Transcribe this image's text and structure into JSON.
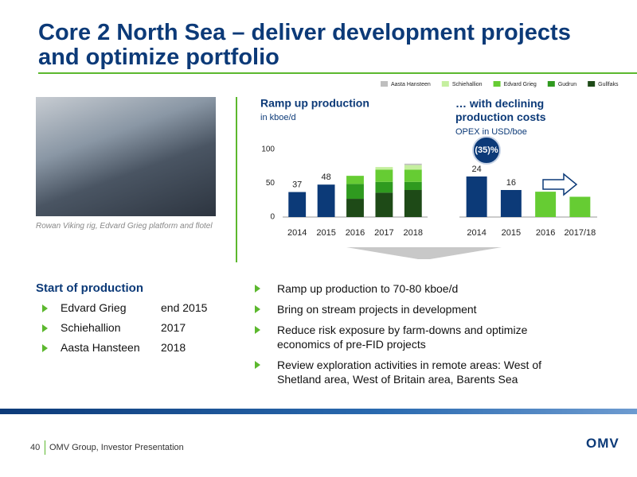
{
  "header": {
    "title": "Core 2 North Sea – deliver development projects and optimize portfolio"
  },
  "photo_caption": "Rowan Viking rig, Edvard Grieg platform and flotel",
  "chart_data": [
    {
      "type": "stacked-bar",
      "title": "Ramp up production",
      "subtitle": "in kboe/d",
      "categories": [
        "2014",
        "2015",
        "2016",
        "2017",
        "2018"
      ],
      "values": [
        37,
        48,
        null,
        null,
        null
      ],
      "color": "#0c3a78",
      "series": [
        {
          "name": "Gullfaks",
          "color": "#1e4a17",
          "values": [
            null,
            null,
            27,
            36,
            40
          ]
        },
        {
          "name": "Gudrun",
          "color": "#2f9a1f",
          "values": [
            null,
            null,
            22,
            16,
            12
          ]
        },
        {
          "name": "Edvard Grieg",
          "color": "#66cc33",
          "values": [
            null,
            null,
            12,
            18,
            18
          ]
        },
        {
          "name": "Schiehallion",
          "color": "#c5ef9f",
          "values": [
            null,
            null,
            null,
            4,
            7
          ]
        },
        {
          "name": "Aasta Hansteen",
          "color": "#bfbfbf",
          "values": [
            null,
            null,
            null,
            null,
            2
          ]
        }
      ],
      "ylim": [
        0,
        100
      ],
      "yticks": [
        0,
        50,
        100
      ]
    },
    {
      "type": "bar",
      "title": "… with declining production costs",
      "subtitle": "OPEX in USD/boe",
      "annotation": "(35)%",
      "categories": [
        "2014",
        "2015",
        "2016",
        "2017/18"
      ],
      "values": [
        24,
        16,
        null,
        null
      ],
      "color": "#0c3a78",
      "series": [
        {
          "color": "#66cc33",
          "values": [
            null,
            null,
            15,
            12
          ]
        }
      ],
      "ylim": [
        0,
        40
      ]
    }
  ],
  "start_of_production": {
    "title": "Start of production",
    "rows": [
      [
        "Edvard Grieg",
        "end 2015"
      ],
      [
        "Schiehallion",
        "2017"
      ],
      [
        "Aasta Hansteen",
        "2018"
      ]
    ]
  },
  "bullets": [
    "Ramp up production to 70-80 kboe/d",
    "Bring on stream projects in development",
    "Reduce risk exposure by farm-downs and optimize economics of pre-FID projects",
    "Review exploration activities in remote areas: West of Shetland area, West of Britain area, Barents Sea"
  ],
  "footer": {
    "page": "40",
    "text": "OMV Group, Investor Presentation"
  },
  "logo": "OMV"
}
